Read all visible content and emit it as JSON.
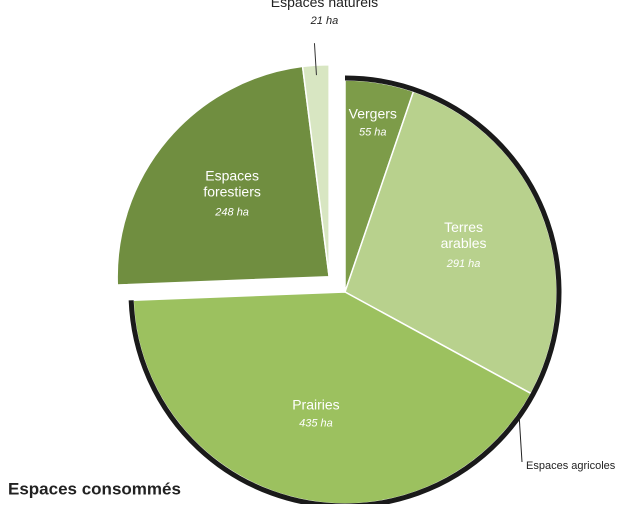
{
  "chart_data": {
    "type": "pie",
    "title": "Espaces consommés",
    "annotation": "Espaces agricoles",
    "categories": [
      "Vergers",
      "Terres arables",
      "Prairies",
      "Espaces forestiers",
      "Espaces naturels"
    ],
    "values": [
      55,
      291,
      435,
      248,
      21
    ],
    "value_labels": [
      "55 ha",
      "291 ha",
      "435 ha",
      "248 ha",
      "21 ha"
    ],
    "colors": [
      "#7d9c49",
      "#b8d18d",
      "#9cc15f",
      "#708e40",
      "#d8e6c2"
    ],
    "explode": [
      false,
      false,
      false,
      true,
      true
    ]
  }
}
